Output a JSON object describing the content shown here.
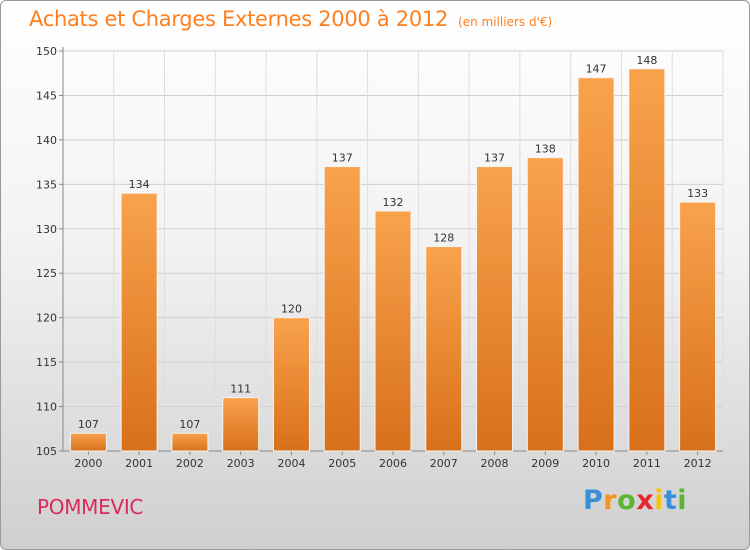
{
  "title": "Achats et Charges Externes 2000 à 2012",
  "subtitle": "(en milliers d'€)",
  "place": "POMMEVIC",
  "logo": [
    "P",
    "r",
    "o",
    "x",
    "i",
    "t",
    "i"
  ],
  "colors": {
    "bar_light": "#f9a24c",
    "bar_dark": "#d8701b",
    "title": "#ff7f1e",
    "place": "#d92b5a"
  },
  "chart_data": {
    "type": "bar",
    "title": "Achats et Charges Externes 2000 à 2012",
    "subtitle": "(en milliers d'€)",
    "categories": [
      "2000",
      "2001",
      "2002",
      "2003",
      "2004",
      "2005",
      "2006",
      "2007",
      "2008",
      "2009",
      "2010",
      "2011",
      "2012"
    ],
    "values": [
      107,
      134,
      107,
      111,
      120,
      137,
      132,
      128,
      137,
      138,
      147,
      148,
      133
    ],
    "ylim": [
      105,
      150
    ],
    "yticks": [
      105,
      110,
      115,
      120,
      125,
      130,
      135,
      140,
      145,
      150
    ],
    "grid": true,
    "legend": "none"
  }
}
